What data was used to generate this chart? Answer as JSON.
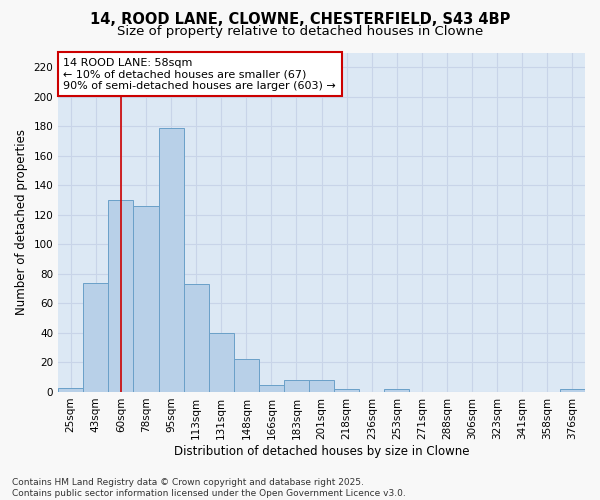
{
  "title_line1": "14, ROOD LANE, CLOWNE, CHESTERFIELD, S43 4BP",
  "title_line2": "Size of property relative to detached houses in Clowne",
  "xlabel": "Distribution of detached houses by size in Clowne",
  "ylabel": "Number of detached properties",
  "categories": [
    "25sqm",
    "43sqm",
    "60sqm",
    "78sqm",
    "95sqm",
    "113sqm",
    "131sqm",
    "148sqm",
    "166sqm",
    "183sqm",
    "201sqm",
    "218sqm",
    "236sqm",
    "253sqm",
    "271sqm",
    "288sqm",
    "306sqm",
    "323sqm",
    "341sqm",
    "358sqm",
    "376sqm"
  ],
  "values": [
    3,
    74,
    130,
    126,
    179,
    73,
    40,
    22,
    5,
    8,
    8,
    2,
    0,
    2,
    0,
    0,
    0,
    0,
    0,
    0,
    2
  ],
  "bar_color": "#b8d0e8",
  "bar_edge_color": "#6aa0c8",
  "vline_x_idx": 2,
  "vline_color": "#cc0000",
  "annotation_text": "14 ROOD LANE: 58sqm\n← 10% of detached houses are smaller (67)\n90% of semi-detached houses are larger (603) →",
  "annotation_box_color": "#cc0000",
  "annotation_bg": "#ffffff",
  "ylim": [
    0,
    230
  ],
  "yticks": [
    0,
    20,
    40,
    60,
    80,
    100,
    120,
    140,
    160,
    180,
    200,
    220
  ],
  "grid_color": "#c8d4e8",
  "plot_bg_color": "#dce8f4",
  "fig_bg_color": "#f8f8f8",
  "footer": "Contains HM Land Registry data © Crown copyright and database right 2025.\nContains public sector information licensed under the Open Government Licence v3.0.",
  "title_fontsize": 10.5,
  "subtitle_fontsize": 9.5,
  "axis_label_fontsize": 8.5,
  "tick_fontsize": 7.5,
  "annotation_fontsize": 8,
  "footer_fontsize": 6.5
}
